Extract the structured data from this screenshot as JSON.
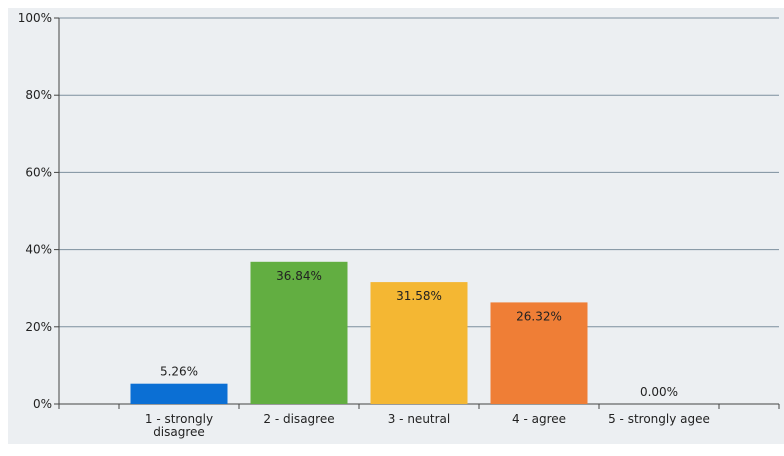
{
  "chart_data": {
    "type": "bar",
    "categories": [
      "1 - strongly disagree",
      "2 - disagree",
      "3 - neutral",
      "4 - agree",
      "5 - strongly agee"
    ],
    "category_lines": [
      [
        "1 - strongly",
        "disagree"
      ],
      [
        "2 - disagree"
      ],
      [
        "3 - neutral"
      ],
      [
        "4 - agree"
      ],
      [
        "5 - strongly agee"
      ]
    ],
    "values": [
      5.26,
      36.84,
      31.58,
      26.32,
      0.0
    ],
    "value_labels": [
      "5.26%",
      "36.84%",
      "31.58%",
      "26.32%",
      "0.00%"
    ],
    "colors": [
      "#0b6fd4",
      "#62ae41",
      "#f4b733",
      "#ef7e36"
    ],
    "ylim": [
      0,
      100
    ],
    "y_ticks": [
      0,
      20,
      40,
      60,
      80,
      100
    ],
    "y_tick_labels": [
      "0%",
      "20%",
      "40%",
      "60%",
      "80%",
      "100%"
    ],
    "grid": true,
    "plot_background": "#eceff2",
    "title": "",
    "xlabel": "",
    "ylabel": ""
  }
}
